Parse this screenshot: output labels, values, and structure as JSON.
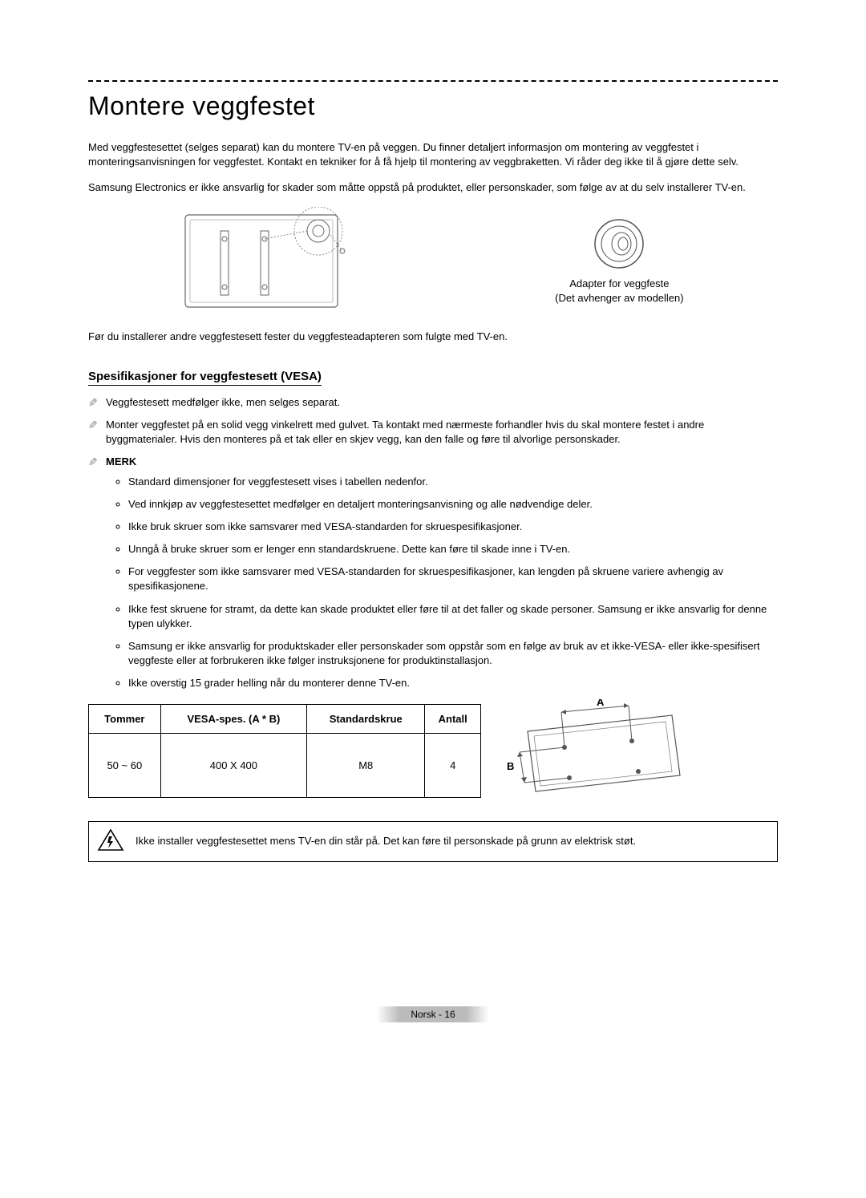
{
  "title": "Montere veggfestet",
  "paragraph1": "Med veggfestesettet (selges separat) kan du montere TV-en på veggen. Du finner detaljert informasjon om montering av veggfestet i monteringsanvisningen for veggfestet. Kontakt en tekniker for å få hjelp til montering av veggbraketten. Vi råder deg ikke til å gjøre dette selv.",
  "paragraph2": "Samsung Electronics er ikke ansvarlig for skader som måtte oppstå på produktet, eller personskader, som følge av at du selv installerer TV-en.",
  "adapterCaption1": "Adapter for veggfeste",
  "adapterCaption2": "(Det avhenger av modellen)",
  "paragraph3": "Før du installerer andre veggfestesett fester du veggfesteadapteren som fulgte med TV-en.",
  "subheading": "Spesifikasjoner for veggfestesett (VESA)",
  "note1": "Veggfestesett medfølger ikke, men selges separat.",
  "note2": "Monter veggfestet på en solid vegg vinkelrett med gulvet. Ta kontakt med nærmeste forhandler hvis du skal montere festet i andre byggmaterialer. Hvis den monteres på et tak eller en skjev vegg, kan den falle og føre til alvorlige personskader.",
  "merkLabel": "MERK",
  "bullets": [
    "Standard dimensjoner for veggfestesett vises i tabellen nedenfor.",
    "Ved innkjøp av veggfestesettet medfølger en detaljert monteringsanvisning og alle nødvendige deler.",
    "Ikke bruk skruer som ikke samsvarer med VESA-standarden for skruespesifikasjoner.",
    "Unngå å bruke skruer som er lenger enn standardskruene. Dette kan føre til skade inne i TV-en.",
    "For veggfester som ikke samsvarer med VESA-standarden for skruespesifikasjoner, kan lengden på skruene variere avhengig av spesifikasjonene.",
    "Ikke fest skruene for stramt, da dette kan skade produktet eller føre til at det faller og skade personer. Samsung er ikke ansvarlig for denne typen ulykker.",
    "Samsung er ikke ansvarlig for produktskader eller personskader som oppstår som en følge av bruk av et ikke-VESA- eller ikke-spesifisert veggfeste eller at forbrukeren ikke følger instruksjonene for produktinstallasjon.",
    "Ikke overstig 15 grader helling når du monterer denne TV-en."
  ],
  "table": {
    "headers": [
      "Tommer",
      "VESA-spes. (A * B)",
      "Standardskrue",
      "Antall"
    ],
    "row": [
      "50 ~ 60",
      "400 X 400",
      "M8",
      "4"
    ]
  },
  "dimLabelA": "A",
  "dimLabelB": "B",
  "warning": "Ikke installer veggfestesettet mens TV-en din står på. Det kan føre til personskade på grunn av elektrisk støt.",
  "footer": "Norsk - 16"
}
